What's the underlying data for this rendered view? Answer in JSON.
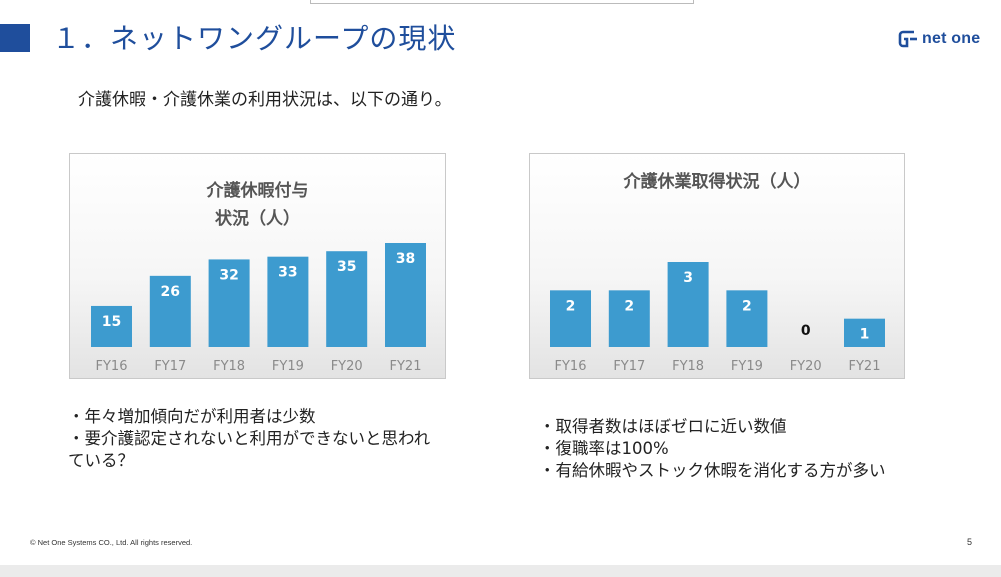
{
  "slide": {
    "title": "１．ネットワングループの現状",
    "logo_text": "net one",
    "intro": "介護休暇・介護休業の利用状況は、以下の通り。",
    "copyright": "© Net One Systems CO., Ltd. All rights reserved.",
    "page_number": "5"
  },
  "bullets_left": [
    "・年々増加傾向だが利用者は少数",
    "・要介護認定されないと利用ができないと思われ",
    "ている？"
  ],
  "bullets_right": [
    "・取得者数はほぼゼロに近い数値",
    "・復職率は100%",
    "・有給休暇やストック休暇を消化する方が多い"
  ],
  "colors": {
    "accent": "#1f4e9c",
    "bar": "#3d9bcf"
  },
  "chart_data": [
    {
      "type": "bar",
      "title_lines": [
        "介護休暇付与",
        "状況（人）"
      ],
      "categories": [
        "FY16",
        "FY17",
        "FY18",
        "FY19",
        "FY20",
        "FY21"
      ],
      "values": [
        15,
        26,
        32,
        33,
        35,
        38
      ],
      "ylim": [
        0,
        38
      ]
    },
    {
      "type": "bar",
      "title_lines": [
        "介護休業取得状況（人）"
      ],
      "categories": [
        "FY16",
        "FY17",
        "FY18",
        "FY19",
        "FY20",
        "FY21"
      ],
      "values": [
        2,
        2,
        3,
        2,
        0,
        1
      ],
      "ylim": [
        0,
        3
      ]
    }
  ]
}
